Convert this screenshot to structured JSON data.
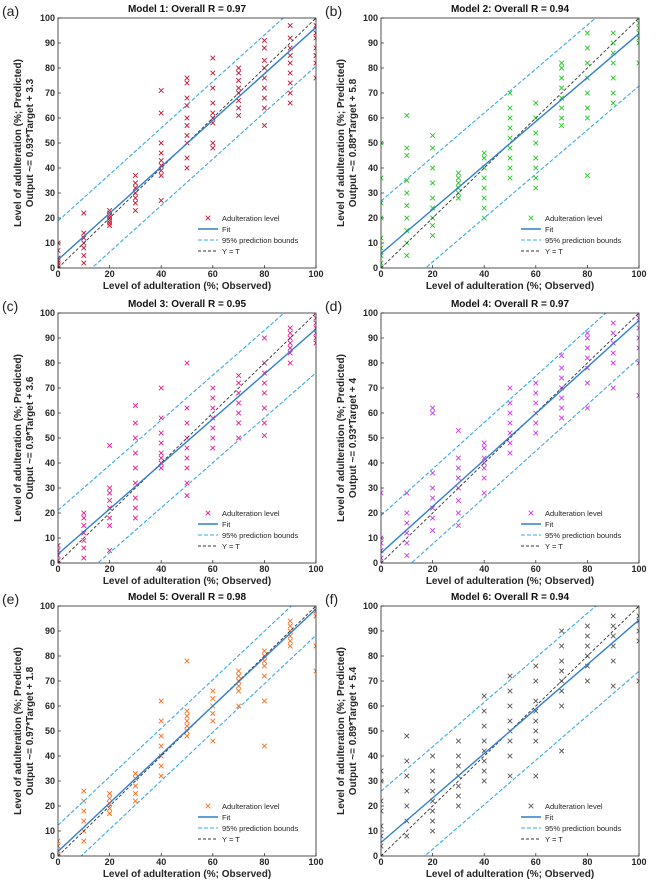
{
  "chart_data": [
    {
      "panel_label": "(a)",
      "title": "Model 1: Overall R = 0.97",
      "type": "scatter",
      "xlabel": "Level of adulteration (%; Observed)",
      "ylabel": [
        "Level of adulteration (%; Predicted)",
        "Output ~= 0.93*Target + 3.3"
      ],
      "xlim": [
        0,
        100
      ],
      "ylim": [
        0,
        100
      ],
      "xticks": [
        0,
        20,
        40,
        60,
        80,
        100
      ],
      "yticks": [
        0,
        10,
        20,
        30,
        40,
        50,
        60,
        70,
        80,
        90,
        100
      ],
      "marker_color": "#c8102e",
      "fit": {
        "slope": 0.93,
        "intercept": 3.3
      },
      "bound_offset": 15.5,
      "points": {
        "0": [
          0,
          1,
          2,
          3,
          4,
          7,
          10
        ],
        "10": [
          2,
          5,
          8,
          10,
          12,
          14,
          22
        ],
        "20": [
          17,
          18,
          19,
          20,
          21,
          22,
          23
        ],
        "30": [
          23,
          26,
          28,
          30,
          32,
          34,
          37
        ],
        "40": [
          27,
          37,
          39,
          41,
          43,
          46,
          50,
          62,
          71
        ],
        "50": [
          40,
          44,
          50,
          53,
          57,
          60,
          65,
          68,
          74,
          76
        ],
        "60": [
          48,
          50,
          58,
          60,
          62,
          66,
          72,
          78,
          84
        ],
        "70": [
          61,
          64,
          67,
          70,
          72,
          75,
          78,
          80
        ],
        "80": [
          57,
          64,
          68,
          72,
          76,
          80,
          83,
          88,
          91
        ],
        "90": [
          66,
          70,
          74,
          78,
          82,
          85,
          88,
          92,
          97
        ],
        "100": [
          76,
          82,
          85,
          88,
          92,
          94,
          97,
          100
        ]
      },
      "legend": [
        "Adulteration level",
        "Fit",
        "95% prediction bounds",
        "Y = T"
      ],
      "legend_position": "bottom-right"
    },
    {
      "panel_label": "(b)",
      "title": "Model 2: Overall R = 0.94",
      "type": "scatter",
      "xlabel": "Level of adulteration (%; Observed)",
      "ylabel": [
        "Level of adulteration (%; Predicted)",
        "Output ~= 0.88*Target + 5.8"
      ],
      "xlim": [
        0,
        100
      ],
      "ylim": [
        0,
        100
      ],
      "xticks": [
        0,
        20,
        40,
        60,
        80,
        100
      ],
      "yticks": [
        0,
        10,
        20,
        30,
        40,
        50,
        60,
        70,
        80,
        90,
        100
      ],
      "marker_color": "#22c622",
      "fit": {
        "slope": 0.88,
        "intercept": 5.8
      },
      "bound_offset": 21,
      "points": {
        "0": [
          0,
          2,
          5,
          8,
          12,
          20,
          26,
          36,
          50
        ],
        "10": [
          5,
          10,
          15,
          20,
          25,
          30,
          35,
          45,
          48,
          61
        ],
        "20": [
          13,
          17,
          20,
          24,
          28,
          34,
          40,
          48,
          53
        ],
        "30": [
          28,
          30,
          32,
          34,
          36,
          38
        ],
        "40": [
          20,
          24,
          28,
          32,
          36,
          40,
          44,
          46
        ],
        "50": [
          36,
          40,
          44,
          48,
          52,
          56,
          60,
          64,
          70
        ],
        "60": [
          32,
          36,
          40,
          44,
          50,
          54,
          60,
          66
        ],
        "70": [
          57,
          60,
          64,
          68,
          72,
          76,
          80,
          82
        ],
        "80": [
          37,
          60,
          64,
          70,
          76,
          82,
          88,
          94
        ],
        "90": [
          66,
          70,
          76,
          82,
          86,
          90,
          94
        ],
        "100": [
          82,
          90,
          92,
          94,
          96,
          98,
          100
        ]
      },
      "legend": [
        "Adulteration level",
        "Fit",
        "95% prediction bounds",
        "Y = T"
      ],
      "legend_position": "bottom-right"
    },
    {
      "panel_label": "(c)",
      "title": "Model 3: Overall R = 0.95",
      "type": "scatter",
      "xlabel": "Level of adulteration (%; Observed)",
      "ylabel": [
        "Level of adulteration (%; Predicted)",
        "Output ~= 0.9*Target + 3.6"
      ],
      "xlim": [
        0,
        100
      ],
      "ylim": [
        0,
        100
      ],
      "xticks": [
        0,
        20,
        40,
        60,
        80,
        100
      ],
      "yticks": [
        0,
        10,
        20,
        30,
        40,
        50,
        60,
        70,
        80,
        90,
        100
      ],
      "marker_color": "#e8198f",
      "fit": {
        "slope": 0.9,
        "intercept": 3.6
      },
      "bound_offset": 17.5,
      "points": {
        "0": [
          0,
          1,
          3,
          5,
          7
        ],
        "10": [
          2,
          6,
          9,
          12,
          15,
          18,
          20
        ],
        "20": [
          5,
          15,
          18,
          22,
          25,
          28,
          30,
          47
        ],
        "30": [
          18,
          22,
          26,
          32,
          38,
          44,
          50,
          56,
          63
        ],
        "40": [
          38,
          40,
          42,
          44,
          48,
          52,
          58,
          70
        ],
        "50": [
          27,
          32,
          38,
          42,
          46,
          50,
          56,
          62,
          80
        ],
        "60": [
          46,
          50,
          54,
          58,
          62,
          66,
          70
        ],
        "70": [
          50,
          56,
          60,
          64,
          68,
          72,
          75
        ],
        "80": [
          51,
          56,
          62,
          68,
          72,
          76,
          80,
          90
        ],
        "90": [
          80,
          84,
          86,
          88,
          90,
          92,
          94
        ],
        "100": [
          88,
          90,
          92,
          94,
          96,
          98
        ]
      },
      "legend": [
        "Adulteration level",
        "Fit",
        "95% prediction bounds",
        "Y = T"
      ],
      "legend_position": "bottom-right"
    },
    {
      "panel_label": "(d)",
      "title": "Model 4: Overall R = 0.97",
      "type": "scatter",
      "xlabel": "Level of adulteration (%; Observed)",
      "ylabel": [
        "Level of adulteration (%; Predicted)",
        "Output ~= 0.93*Target + 4"
      ],
      "xlim": [
        0,
        100
      ],
      "ylim": [
        0,
        100
      ],
      "xticks": [
        0,
        20,
        40,
        60,
        80,
        100
      ],
      "yticks": [
        0,
        10,
        20,
        30,
        40,
        50,
        60,
        70,
        80,
        90,
        100
      ],
      "marker_color": "#cc33ee",
      "fit": {
        "slope": 0.93,
        "intercept": 4
      },
      "bound_offset": 15,
      "points": {
        "0": [
          0,
          2,
          5,
          8,
          10,
          28
        ],
        "10": [
          3,
          8,
          12,
          16,
          20,
          28
        ],
        "20": [
          13,
          18,
          22,
          26,
          30,
          36,
          60,
          62
        ],
        "30": [
          15,
          20,
          25,
          30,
          34,
          38,
          42,
          53
        ],
        "40": [
          28,
          34,
          38,
          40,
          42,
          46,
          48
        ],
        "50": [
          44,
          48,
          52,
          56,
          60,
          64,
          70
        ],
        "60": [
          52,
          56,
          60,
          64,
          68,
          72
        ],
        "70": [
          58,
          62,
          66,
          70,
          74,
          78,
          83
        ],
        "80": [
          62,
          72,
          78,
          82,
          86,
          90,
          92
        ],
        "90": [
          70,
          80,
          84,
          88,
          92,
          96
        ],
        "100": [
          67,
          80,
          86,
          90,
          94,
          98,
          100
        ]
      },
      "legend": [
        "Adulteration level",
        "Fit",
        "95% prediction bounds",
        "Y = T"
      ],
      "legend_position": "bottom-right"
    },
    {
      "panel_label": "(e)",
      "title": "Model 5: Overall R = 0.98",
      "type": "scatter",
      "xlabel": "Level of adulteration (%; Observed)",
      "ylabel": [
        "Level of adulteration (%; Predicted)",
        "Output ~= 0.97*Target + 1.8"
      ],
      "xlim": [
        0,
        100
      ],
      "ylim": [
        0,
        100
      ],
      "xticks": [
        0,
        20,
        40,
        60,
        80,
        100
      ],
      "yticks": [
        0,
        10,
        20,
        30,
        40,
        50,
        60,
        70,
        80,
        90,
        100
      ],
      "marker_color": "#ff6a1a",
      "fit": {
        "slope": 0.97,
        "intercept": 1.8
      },
      "bound_offset": 10.5,
      "points": {
        "0": [
          0,
          2,
          4,
          6
        ],
        "10": [
          6,
          10,
          14,
          18,
          22,
          26
        ],
        "20": [
          17,
          19,
          21,
          23,
          25
        ],
        "30": [
          22,
          25,
          28,
          31,
          33
        ],
        "40": [
          32,
          36,
          40,
          44,
          48,
          54,
          62
        ],
        "50": [
          48,
          50,
          52,
          54,
          56,
          58,
          78
        ],
        "60": [
          46,
          54,
          57,
          60,
          63,
          66
        ],
        "70": [
          60,
          66,
          68,
          70,
          72,
          74
        ],
        "80": [
          44,
          62,
          72,
          76,
          78,
          80,
          82
        ],
        "90": [
          84,
          86,
          88,
          90,
          92,
          94
        ],
        "100": [
          74,
          84,
          96,
          98,
          100
        ]
      },
      "legend": [
        "Adulteration level",
        "Fit",
        "95% prediction bounds",
        "Y = T"
      ],
      "legend_position": "bottom-right"
    },
    {
      "panel_label": "(f)",
      "title": "Model 6: Overall R = 0.94",
      "type": "scatter",
      "xlabel": "Level of adulteration (%; Observed)",
      "ylabel": [
        "Level of adulteration (%; Predicted)",
        "Output ~= 0.89*Target + 5.4"
      ],
      "xlim": [
        0,
        100
      ],
      "ylim": [
        0,
        100
      ],
      "xticks": [
        0,
        20,
        40,
        60,
        80,
        100
      ],
      "yticks": [
        0,
        10,
        20,
        30,
        40,
        50,
        60,
        70,
        80,
        90,
        100
      ],
      "marker_color": "#555555",
      "fit": {
        "slope": 0.89,
        "intercept": 5.4
      },
      "bound_offset": 20.5,
      "points": {
        "0": [
          0,
          4,
          8,
          12,
          18,
          22,
          30,
          34
        ],
        "10": [
          8,
          14,
          20,
          26,
          32,
          38,
          48
        ],
        "20": [
          10,
          14,
          18,
          22,
          26,
          30,
          34,
          40
        ],
        "30": [
          20,
          24,
          28,
          32,
          36,
          40,
          46
        ],
        "40": [
          30,
          34,
          38,
          42,
          46,
          52,
          58,
          64
        ],
        "50": [
          32,
          40,
          46,
          50,
          54,
          60,
          66,
          72
        ],
        "60": [
          32,
          46,
          50,
          54,
          58,
          62,
          70,
          76
        ],
        "70": [
          42,
          60,
          66,
          70,
          74,
          78,
          84,
          90
        ],
        "80": [
          70,
          76,
          80,
          84,
          88,
          92
        ],
        "90": [
          68,
          78,
          84,
          88,
          92,
          96
        ],
        "100": [
          70,
          86,
          90,
          94,
          96,
          100
        ]
      },
      "legend": [
        "Adulteration level",
        "Fit",
        "95% prediction bounds",
        "Y = T"
      ],
      "legend_position": "bottom-right"
    }
  ],
  "colors": {
    "fit": "#2f7fd0",
    "bounds": "#3aa8e8",
    "identity": "#333333"
  }
}
